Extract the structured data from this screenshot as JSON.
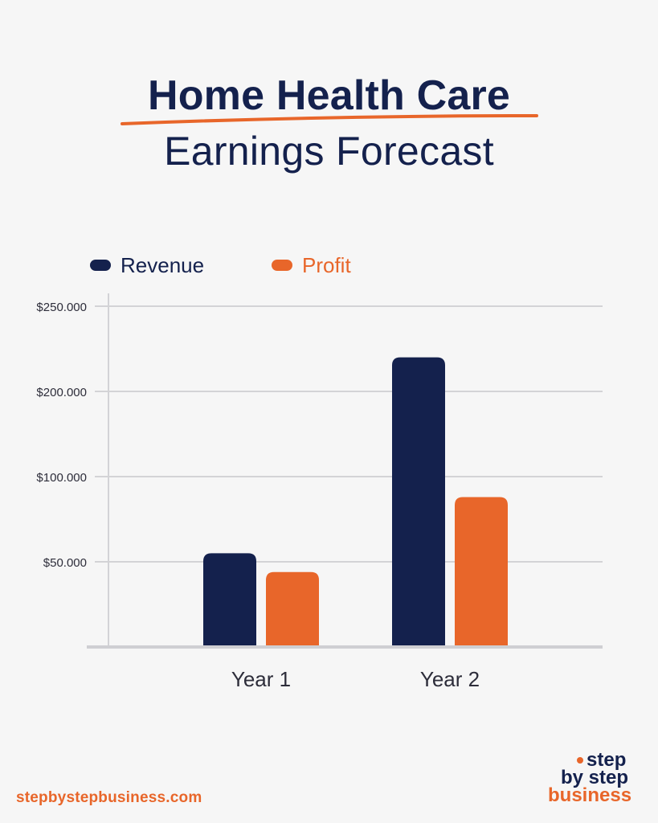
{
  "header": {
    "title_line1": "Home Health Care",
    "title_line2": "Earnings Forecast",
    "accent_color": "#e8662a",
    "title_color": "#14214d"
  },
  "chart_data": {
    "type": "bar",
    "title": "Home Health Care Earnings Forecast",
    "categories": [
      "Year 1",
      "Year 2"
    ],
    "series": [
      {
        "name": "Revenue",
        "color": "#14214d",
        "values": [
          55000,
          220000
        ]
      },
      {
        "name": "Profit",
        "color": "#e8662a",
        "values": [
          44000,
          88000
        ]
      }
    ],
    "yticks": [
      {
        "label": "$50.000",
        "value": 50000
      },
      {
        "label": "$100.000",
        "value": 100000
      },
      {
        "label": "$200.000",
        "value": 200000
      },
      {
        "label": "$250.000",
        "value": 250000
      }
    ],
    "xlabel": "",
    "ylabel": "",
    "ylim": [
      0,
      250000
    ],
    "grid": true,
    "legend_position": "top-left"
  },
  "footer": {
    "url": "stepbystepbusiness.com",
    "logo_line1": "step",
    "logo_line2": "by step",
    "logo_line3": "business"
  }
}
